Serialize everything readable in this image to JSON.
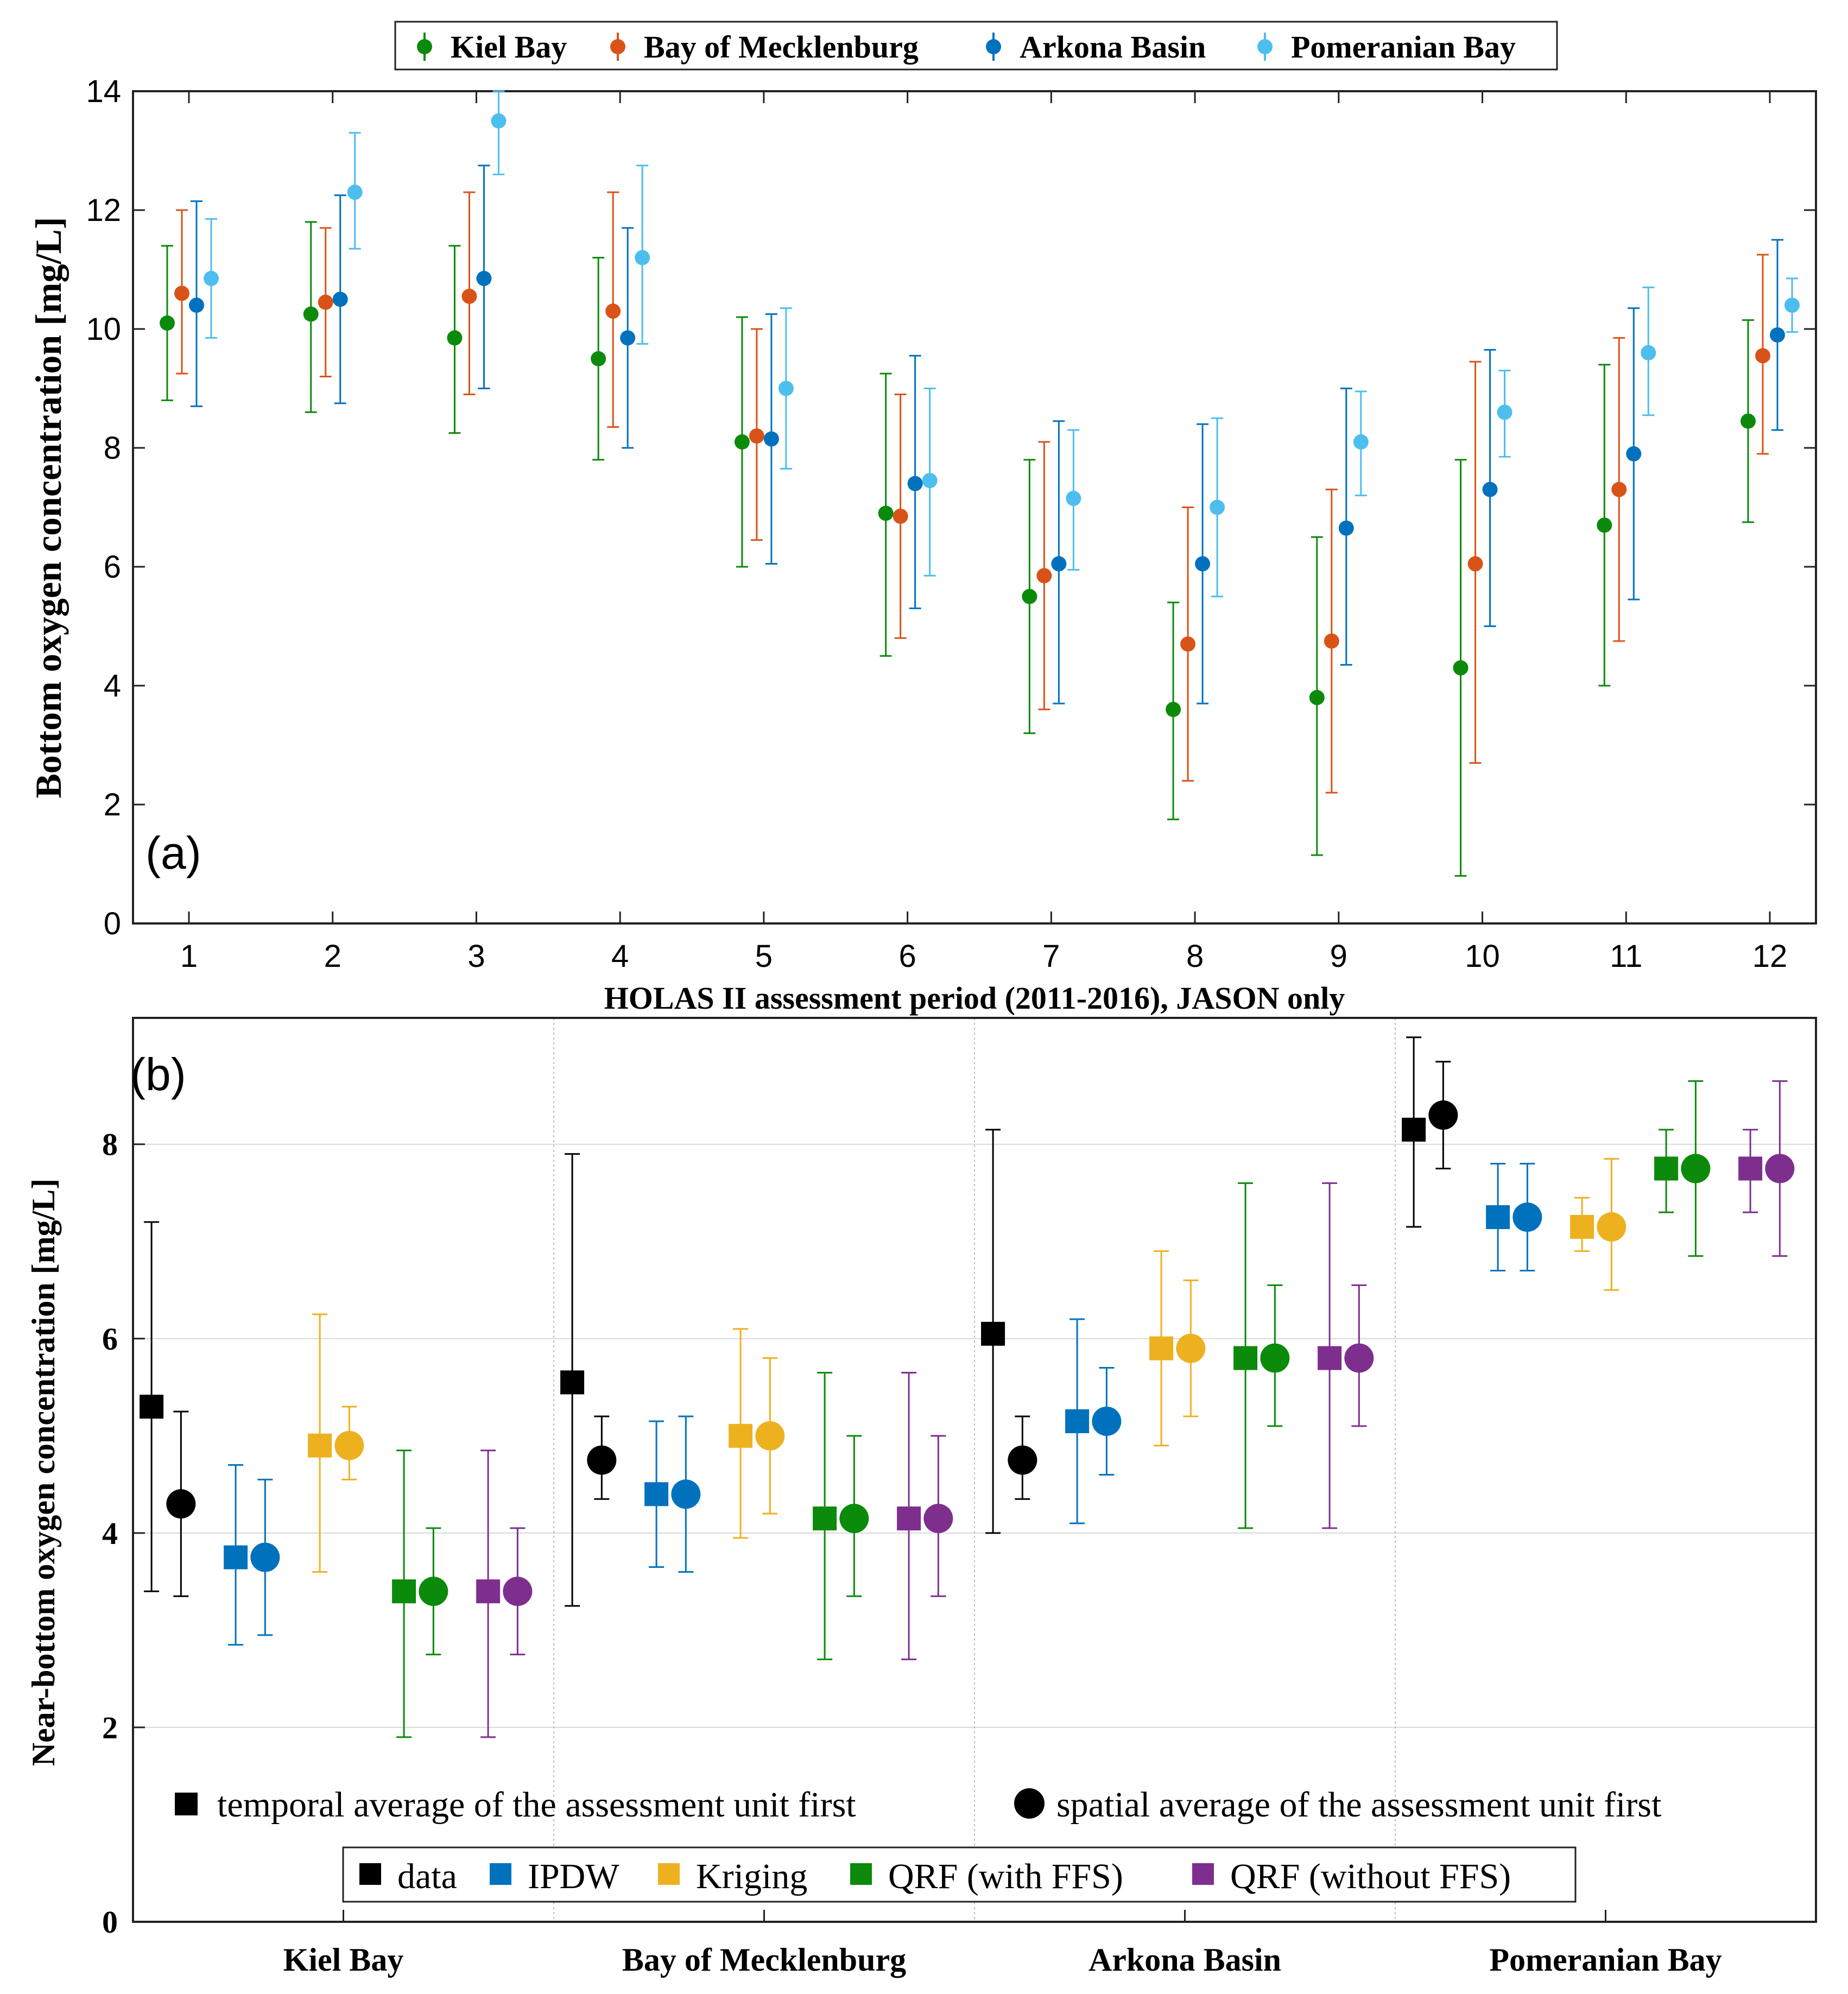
{
  "chart_data": [
    {
      "panel_label": "(a)",
      "type": "scatter",
      "xlabel": "HOLAS II assessment period (2011-2016), JASON only",
      "ylabel": "Bottom oxygen concentration [mg/L]",
      "ylim": [
        0,
        14
      ],
      "yticks": [
        0,
        2,
        4,
        6,
        8,
        10,
        12,
        14
      ],
      "xticks": [
        1,
        2,
        3,
        4,
        5,
        6,
        7,
        8,
        9,
        10,
        11,
        12
      ],
      "grid": false,
      "legend_position": "top",
      "colors": {
        "Kiel Bay": "#0b8a0b",
        "Bay of Mecklenburg": "#d95319",
        "Arkona Basin": "#0072bd",
        "Pomeranian Bay": "#4dbeee"
      },
      "series": [
        {
          "name": "Kiel Bay",
          "x": [
            1,
            2,
            3,
            4,
            5,
            6,
            7,
            8,
            9,
            10,
            11,
            12
          ],
          "y": [
            10.1,
            10.25,
            9.85,
            9.5,
            8.1,
            6.9,
            5.5,
            3.6,
            3.8,
            4.3,
            6.7,
            8.45
          ],
          "err_low": [
            8.8,
            8.6,
            8.25,
            7.8,
            6.0,
            4.5,
            3.2,
            1.75,
            1.15,
            0.8,
            4.0,
            6.75
          ],
          "err_high": [
            11.4,
            11.8,
            11.4,
            11.2,
            10.2,
            9.25,
            7.8,
            5.4,
            6.5,
            7.8,
            9.4,
            10.15
          ]
        },
        {
          "name": "Bay of Mecklenburg",
          "x": [
            1,
            2,
            3,
            4,
            5,
            6,
            7,
            8,
            9,
            10,
            11,
            12
          ],
          "y": [
            10.6,
            10.45,
            10.55,
            10.3,
            8.2,
            6.85,
            5.85,
            4.7,
            4.75,
            6.05,
            7.3,
            9.55
          ],
          "err_low": [
            9.25,
            9.2,
            8.9,
            8.35,
            6.45,
            4.8,
            3.6,
            2.4,
            2.2,
            2.7,
            4.75,
            7.9
          ],
          "err_high": [
            12.0,
            11.7,
            12.3,
            12.3,
            10.0,
            8.9,
            8.1,
            7.0,
            7.3,
            9.45,
            9.85,
            11.25
          ]
        },
        {
          "name": "Arkona Basin",
          "x": [
            1,
            2,
            3,
            4,
            5,
            6,
            7,
            8,
            9,
            10,
            11,
            12
          ],
          "y": [
            10.4,
            10.5,
            10.85,
            9.85,
            8.15,
            7.4,
            6.05,
            6.05,
            6.65,
            7.3,
            7.9,
            9.9
          ],
          "err_low": [
            8.7,
            8.75,
            9.0,
            8.0,
            6.05,
            5.3,
            3.7,
            3.7,
            4.35,
            5.0,
            5.45,
            8.3
          ],
          "err_high": [
            12.15,
            12.25,
            12.75,
            11.7,
            10.25,
            9.55,
            8.45,
            8.4,
            9.0,
            9.65,
            10.35,
            11.5
          ]
        },
        {
          "name": "Pomeranian Bay",
          "x": [
            1,
            2,
            3,
            4,
            5,
            6,
            7,
            8,
            9,
            10,
            11,
            12
          ],
          "y": [
            10.85,
            12.3,
            13.5,
            11.2,
            9.0,
            7.45,
            7.15,
            7.0,
            8.1,
            8.6,
            9.6,
            10.4
          ],
          "err_low": [
            9.85,
            11.35,
            12.6,
            9.75,
            7.65,
            5.85,
            5.95,
            5.5,
            7.2,
            7.85,
            8.55,
            9.95
          ],
          "err_high": [
            11.85,
            13.3,
            14.4,
            12.75,
            10.35,
            9.0,
            8.3,
            8.5,
            8.95,
            9.3,
            10.7,
            10.85
          ]
        }
      ]
    },
    {
      "panel_label": "(b)",
      "type": "scatter",
      "ylabel": "Near-bottom oxygen concentration [mg/L]",
      "ylim": [
        0,
        9.3
      ],
      "yticks": [
        0,
        2,
        4,
        6,
        8
      ],
      "grid": true,
      "categories": [
        "Kiel Bay",
        "Bay of Mecklenburg",
        "Arkona Basin",
        "Pomeranian Bay"
      ],
      "marker_legend": [
        {
          "marker": "square",
          "label": "temporal average of the assessment unit first"
        },
        {
          "marker": "circle",
          "label": "spatial average of the assessment unit first"
        }
      ],
      "method_legend": [
        {
          "label": "data",
          "color": "#000000"
        },
        {
          "label": "IPDW",
          "color": "#0072bd"
        },
        {
          "label": "Kriging",
          "color": "#edb120"
        },
        {
          "label": "QRF (with FFS)",
          "color": "#0b8a0b"
        },
        {
          "label": "QRF (without FFS)",
          "color": "#7e2f8e"
        }
      ],
      "series": [
        {
          "name": "data",
          "color": "#000000",
          "square": {
            "y": [
              5.3,
              5.55,
              6.05,
              8.15
            ],
            "low": [
              3.4,
              3.25,
              4.0,
              7.15
            ],
            "high": [
              7.2,
              7.9,
              8.15,
              9.1
            ]
          },
          "circle": {
            "y": [
              4.3,
              4.75,
              4.75,
              8.3
            ],
            "low": [
              3.35,
              4.35,
              4.35,
              7.75
            ],
            "high": [
              5.25,
              5.2,
              5.2,
              8.85
            ]
          }
        },
        {
          "name": "IPDW",
          "color": "#0072bd",
          "square": {
            "y": [
              3.75,
              4.4,
              5.15,
              7.25
            ],
            "low": [
              2.85,
              3.65,
              4.1,
              6.7
            ],
            "high": [
              4.7,
              5.15,
              6.2,
              7.8
            ]
          },
          "circle": {
            "y": [
              3.75,
              4.4,
              5.15,
              7.25
            ],
            "low": [
              2.95,
              3.6,
              4.6,
              6.7
            ],
            "high": [
              4.55,
              5.2,
              5.7,
              7.8
            ]
          }
        },
        {
          "name": "Kriging",
          "color": "#edb120",
          "square": {
            "y": [
              4.9,
              5.0,
              5.9,
              7.15
            ],
            "low": [
              3.6,
              3.95,
              4.9,
              6.9
            ],
            "high": [
              6.25,
              6.1,
              6.9,
              7.45
            ]
          },
          "circle": {
            "y": [
              4.9,
              5.0,
              5.9,
              7.15
            ],
            "low": [
              4.55,
              4.2,
              5.2,
              6.5
            ],
            "high": [
              5.3,
              5.8,
              6.6,
              7.85
            ]
          }
        },
        {
          "name": "QRF (with FFS)",
          "color": "#0b8a0b",
          "square": {
            "y": [
              3.4,
              4.15,
              5.8,
              7.75
            ],
            "low": [
              1.9,
              2.7,
              4.05,
              7.3
            ],
            "high": [
              4.85,
              5.65,
              7.6,
              8.15
            ]
          },
          "circle": {
            "y": [
              3.4,
              4.15,
              5.8,
              7.75
            ],
            "low": [
              2.75,
              3.35,
              5.1,
              6.85
            ],
            "high": [
              4.05,
              5.0,
              6.55,
              8.65
            ]
          }
        },
        {
          "name": "QRF (without FFS)",
          "color": "#7e2f8e",
          "square": {
            "y": [
              3.4,
              4.15,
              5.8,
              7.75
            ],
            "low": [
              1.9,
              2.7,
              4.05,
              7.3
            ],
            "high": [
              4.85,
              5.65,
              7.6,
              8.15
            ]
          },
          "circle": {
            "y": [
              3.4,
              4.15,
              5.8,
              7.75
            ],
            "low": [
              2.75,
              3.35,
              5.1,
              6.85
            ],
            "high": [
              4.05,
              5.0,
              6.55,
              8.65
            ]
          }
        }
      ]
    }
  ]
}
